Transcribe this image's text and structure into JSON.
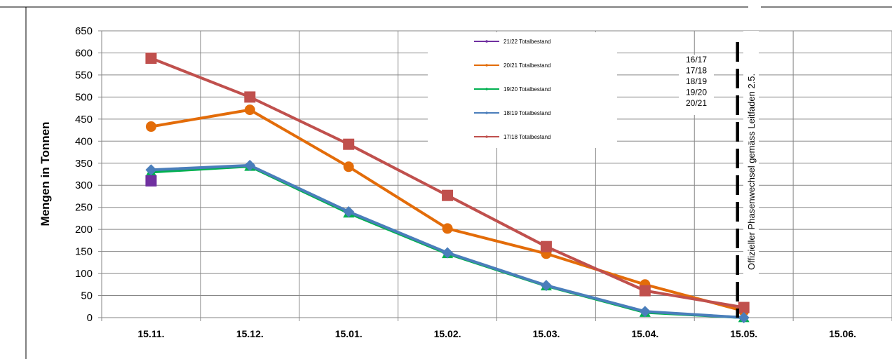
{
  "chart_data": {
    "type": "line",
    "ylabel": "Mengen in Tonnen",
    "xlabel": "",
    "ylim": [
      0,
      650
    ],
    "yticks": [
      0,
      50,
      100,
      150,
      200,
      250,
      300,
      350,
      400,
      450,
      500,
      550,
      600,
      650
    ],
    "categories": [
      "15.11.",
      "15.12.",
      "15.01.",
      "15.02.",
      "15.03.",
      "15.04.",
      "15.05.",
      "15.06."
    ],
    "grid": true,
    "legend_position": "top-center",
    "series": [
      {
        "name": "21/22 Totalbestand",
        "color": "#7030a0",
        "marker": "square",
        "values": [
          310,
          null,
          null,
          null,
          null,
          null,
          null,
          null
        ]
      },
      {
        "name": "20/21 Totalbestand",
        "color": "#e36c09",
        "marker": "circle",
        "values": [
          433,
          471,
          342,
          202,
          145,
          75,
          15,
          null
        ]
      },
      {
        "name": "19/20 Totalbestand",
        "color": "#00b050",
        "marker": "triangle",
        "values": [
          330,
          343,
          237,
          145,
          72,
          12,
          0,
          null
        ]
      },
      {
        "name": "18/19 Totalbestand",
        "color": "#4a7ebb",
        "marker": "diamond",
        "values": [
          335,
          345,
          240,
          147,
          73,
          14,
          0,
          null
        ]
      },
      {
        "name": "17/18 Totalbestand",
        "color": "#c0504d",
        "marker": "square",
        "values": [
          588,
          500,
          393,
          277,
          161,
          61,
          23,
          null
        ]
      }
    ],
    "annotations": {
      "seasons": [
        "16/17",
        "17/18",
        "18/19",
        "19/20",
        "20/21"
      ],
      "phase_line_x": "15.05.",
      "phase_label": "Offizieller Phasenwechsel gemäss Leitfaden 2.5."
    }
  }
}
